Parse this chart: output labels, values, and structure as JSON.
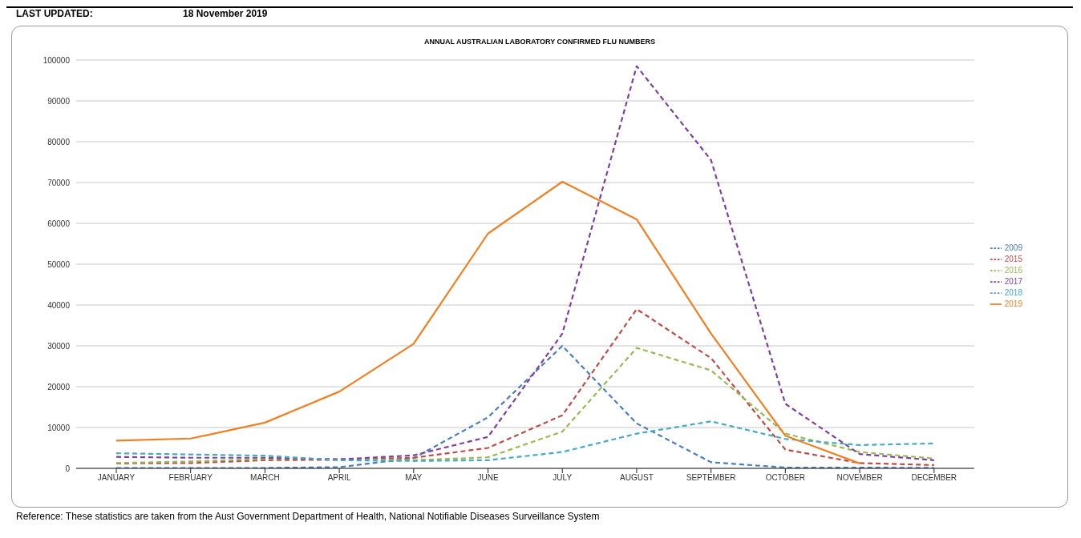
{
  "chart_data": {
    "type": "line",
    "title": "ANNUAL AUSTRALIAN LABORATORY CONFIRMED FLU NUMBERS",
    "annotations": [
      "LAST UPDATED:",
      "18 November 2019",
      "Reference: These statistics are taken from the Aust Government Department of Health, National Notifiable Diseases Surveillance System"
    ],
    "categories": [
      "JANUARY",
      "FEBRUARY",
      "MARCH",
      "APRIL",
      "MAY",
      "JUNE",
      "JULY",
      "AUGUST",
      "SEPTEMBER",
      "OCTOBER",
      "NOVEMBER",
      "DECEMBER"
    ],
    "series": [
      {
        "name": "2009",
        "color": "#4a7ebb",
        "line_style": "dashed",
        "values": [
          100,
          100,
          100,
          300,
          2500,
          12500,
          30000,
          11000,
          1500,
          200,
          200,
          100
        ]
      },
      {
        "name": "2015",
        "color": "#be4b48",
        "line_style": "dashed",
        "values": [
          1200,
          1300,
          2000,
          2100,
          2600,
          5000,
          13000,
          39000,
          27000,
          4600,
          1300,
          800
        ]
      },
      {
        "name": "2016",
        "color": "#98b954",
        "line_style": "dashed",
        "values": [
          1300,
          1700,
          2300,
          2300,
          2000,
          2700,
          9000,
          29500,
          24000,
          8500,
          4000,
          2400
        ]
      },
      {
        "name": "2017",
        "color": "#7e3f9d",
        "line_style": "dashed",
        "values": [
          2800,
          2600,
          2600,
          2200,
          3200,
          7700,
          33000,
          98500,
          75500,
          15800,
          3500,
          2000
        ]
      },
      {
        "name": "2018",
        "color": "#46aac5",
        "line_style": "dashed",
        "values": [
          3700,
          3400,
          3100,
          2000,
          1800,
          2000,
          4000,
          8500,
          11500,
          7200,
          5700,
          6100
        ]
      },
      {
        "name": "2019",
        "color": "#f07f22",
        "line_style": "solid",
        "values": [
          6800,
          7300,
          11200,
          18800,
          30500,
          57500,
          70200,
          61000,
          33000,
          8000,
          1200,
          null
        ]
      }
    ],
    "ylim": [
      0,
      100000
    ],
    "yticks": [
      0,
      10000,
      20000,
      30000,
      40000,
      50000,
      60000,
      70000,
      80000,
      90000,
      100000
    ],
    "grid": "y",
    "legend": "right",
    "marker": "none"
  }
}
